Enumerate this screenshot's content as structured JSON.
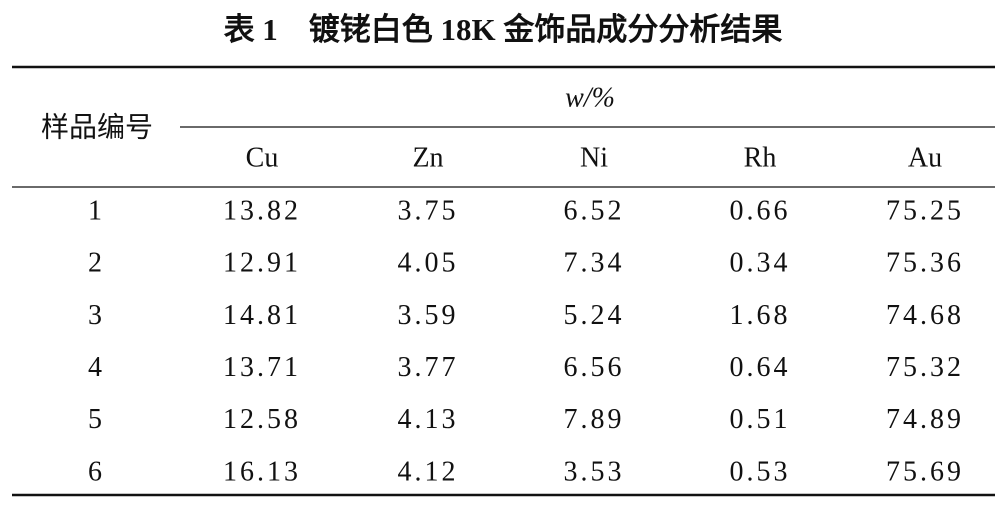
{
  "table": {
    "title": "表 1　镀铑白色 18K 金饰品成分分析结果",
    "header": {
      "sample_label": "样品编号",
      "unit_label": "w/%",
      "columns": [
        "Cu",
        "Zn",
        "Ni",
        "Rh",
        "Au"
      ]
    },
    "rows": [
      [
        "1",
        "13.82",
        "3.75",
        "6.52",
        "0.66",
        "75.25"
      ],
      [
        "2",
        "12.91",
        "4.05",
        "7.34",
        "0.34",
        "75.36"
      ],
      [
        "3",
        "14.81",
        "3.59",
        "5.24",
        "1.68",
        "74.68"
      ],
      [
        "4",
        "13.71",
        "3.77",
        "6.56",
        "0.64",
        "75.32"
      ],
      [
        "5",
        "12.58",
        "4.13",
        "7.89",
        "0.51",
        "74.89"
      ],
      [
        "6",
        "16.13",
        "4.12",
        "3.53",
        "0.53",
        "75.69"
      ]
    ]
  }
}
